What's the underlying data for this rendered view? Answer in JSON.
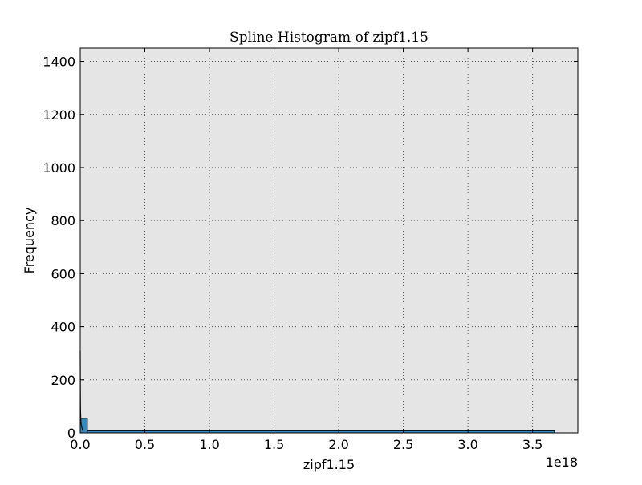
{
  "chart_data": {
    "type": "bar",
    "title": "Spline Histogram of zipf1.15",
    "xlabel": "zipf1.15",
    "ylabel": "Frequency",
    "x_offset_label": "1e18",
    "xlim": [
      0,
      3.85
    ],
    "ylim": [
      0,
      1450
    ],
    "x_unit_multiplier": 1e+18,
    "x_ticks": [
      0.0,
      0.5,
      1.0,
      1.5,
      2.0,
      2.5,
      3.0,
      3.5
    ],
    "x_tick_labels": [
      "0.0",
      "0.5",
      "1.0",
      "1.5",
      "2.0",
      "2.5",
      "3.0",
      "3.5"
    ],
    "y_ticks": [
      0,
      200,
      400,
      600,
      800,
      1000,
      1200,
      1400
    ],
    "y_tick_labels": [
      "0",
      "200",
      "400",
      "600",
      "800",
      "1000",
      "1200",
      "1400"
    ],
    "grid": true,
    "legend": "none",
    "bars": [
      {
        "x0": 0.0,
        "x1": 0.055,
        "value": 55
      },
      {
        "x0": 0.055,
        "x1": 3.67,
        "value": 8
      }
    ],
    "spline": {
      "x": [
        0.0,
        0.001,
        0.002,
        0.004,
        0.007,
        0.012,
        0.02
      ],
      "y": [
        310,
        150,
        90,
        55,
        35,
        20,
        8
      ]
    },
    "colors": {
      "bar_fill": "#348ABD",
      "bar_edge": "#000000",
      "plot_background": "#E5E5E5",
      "grid": "#555555",
      "spline": "#111111"
    }
  }
}
